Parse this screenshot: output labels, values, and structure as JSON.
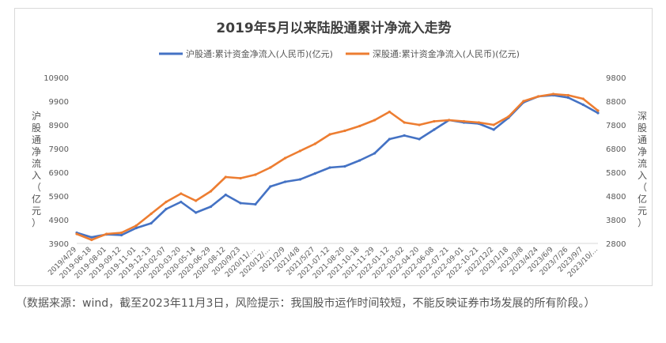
{
  "chart_data": {
    "type": "line",
    "title": "2019年5月以来陆股通累计净流入走势",
    "ylabel_left": "沪股通净流入（亿元）",
    "ylabel_right": "深股通净流入（亿元）",
    "ylim_left": [
      3900,
      10900
    ],
    "ylim_right": [
      2800,
      9800
    ],
    "yticks_left": [
      "3900",
      "4900",
      "5900",
      "6900",
      "7900",
      "8900",
      "9900",
      "10900"
    ],
    "yticks_right": [
      "2800",
      "3800",
      "4800",
      "5800",
      "6800",
      "7800",
      "8800",
      "9800"
    ],
    "legend_position": "top",
    "categories": [
      "2019/4/29",
      "2019-06-18",
      "2019-08-01",
      "2019-09-12",
      "2019-11-01",
      "2019-12-13",
      "2020-02-07",
      "2020-03-20",
      "2020-05-14",
      "2020-06-29",
      "2020-08-12",
      "2020/9/23",
      "2020/11/…",
      "2020/12/…",
      "2021/2/9",
      "2021/4/8",
      "2021/5/27",
      "2021-07-12",
      "2021-08-20",
      "2021-10-18",
      "2021-11-29",
      "2022-01-12",
      "2022-03-02",
      "2022-04-20",
      "2022-06-08",
      "2022-07-21",
      "2022-09-01",
      "2022-10-21",
      "2022/12/2",
      "2023/1/18",
      "2023/3/8",
      "2023/4/24",
      "2023/6/9",
      "2023/7/26",
      "2023/9/7",
      "2023/10/…"
    ],
    "series": [
      {
        "name": "沪股通:累计资金净流入(人民币)(亿元)",
        "axis": "left",
        "color": "#4472c4",
        "values": [
          4350,
          4160,
          4280,
          4250,
          4550,
          4750,
          5350,
          5650,
          5200,
          5450,
          5950,
          5600,
          5550,
          6300,
          6500,
          6600,
          6850,
          7100,
          7150,
          7400,
          7700,
          8300,
          8450,
          8300,
          8700,
          9100,
          9000,
          8950,
          8700,
          9200,
          9850,
          10100,
          10150,
          10050,
          9750,
          9400
        ]
      },
      {
        "name": "深股通:累计资金净流入(人民币)(亿元)",
        "axis": "right",
        "color": "#ed7d31",
        "values": [
          3200,
          2950,
          3200,
          3250,
          3550,
          4050,
          4550,
          4900,
          4600,
          5000,
          5600,
          5550,
          5700,
          6000,
          6400,
          6700,
          7000,
          7400,
          7550,
          7750,
          8000,
          8350,
          7900,
          7800,
          7950,
          8000,
          7950,
          7900,
          7800,
          8150,
          8800,
          9000,
          9100,
          9050,
          8900,
          8400
        ]
      }
    ]
  },
  "footnote": "（数据来源：wind，截至2023年11月3日，风险提示：我国股市运作时间较短，不能反映证券市场发展的所有阶段。）"
}
